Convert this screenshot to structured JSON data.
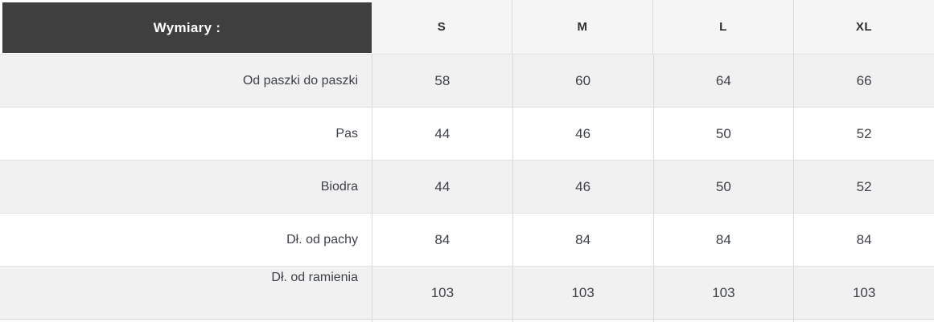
{
  "chart_data": {
    "type": "table",
    "title": "Wymiary :",
    "columns": [
      "S",
      "M",
      "L",
      "XL"
    ],
    "rows": [
      {
        "label": "Od paszki do paszki",
        "values": [
          58,
          60,
          64,
          66
        ]
      },
      {
        "label": "Pas",
        "values": [
          44,
          46,
          50,
          52
        ]
      },
      {
        "label": "Biodra",
        "values": [
          44,
          46,
          50,
          52
        ]
      },
      {
        "label": "Dł. od pachy",
        "values": [
          84,
          84,
          84,
          84
        ]
      },
      {
        "label": "Dł. od ramienia",
        "values": [
          103,
          103,
          103,
          103
        ]
      }
    ],
    "layout_hints": {
      "header_style": "dark box over first column, light band over size columns",
      "row_striping": "odd rows gray, even rows white",
      "label_alignment": "right"
    }
  },
  "colors": {
    "title_box_bg": "#3f3f3f",
    "title_text": "#ffffff",
    "size_band_bg": "#f5f5f5",
    "row_alt_bg": "#f1f1f1",
    "row_bg": "#ffffff",
    "border_vertical": "#dadada",
    "border_horizontal": "#e2e2e2",
    "text": "#3d4148"
  }
}
